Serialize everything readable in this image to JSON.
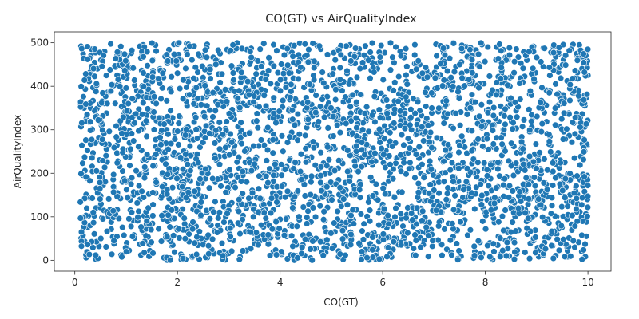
{
  "chart_data": {
    "type": "scatter",
    "title": "CO(GT) vs AirQualityIndex",
    "xlabel": "CO(GT)",
    "ylabel": "AirQualityIndex",
    "xlim": [
      -0.4,
      10.45
    ],
    "ylim": [
      -25,
      525
    ],
    "xticks": [
      0,
      2,
      4,
      6,
      8,
      10
    ],
    "yticks": [
      0,
      100,
      200,
      300,
      400,
      500
    ],
    "grid": false,
    "legend": "none",
    "marker_color": "#1f77b4",
    "marker_edge_color": "#ffffff",
    "point_count": 3000,
    "x_range": [
      0.1,
      10.0
    ],
    "y_range": [
      0,
      500
    ],
    "distribution": "approximately uniform over the x and y ranges",
    "points": [
      [
        0.12,
        492
      ],
      [
        0.15,
        65
      ],
      [
        0.18,
        350
      ],
      [
        0.22,
        6
      ],
      [
        0.25,
        188
      ],
      [
        0.31,
        271
      ],
      [
        0.35,
        445
      ],
      [
        0.41,
        120
      ],
      [
        0.47,
        32
      ],
      [
        0.52,
        310
      ],
      [
        0.58,
        480
      ],
      [
        0.63,
        226
      ],
      [
        0.71,
        88
      ],
      [
        0.76,
        402
      ],
      [
        0.83,
        155
      ],
      [
        0.9,
        12
      ],
      [
        0.96,
        335
      ],
      [
        1.02,
        470
      ],
      [
        1.08,
        240
      ],
      [
        1.15,
        58
      ],
      [
        1.21,
        390
      ],
      [
        1.27,
        140
      ],
      [
        1.33,
        495
      ],
      [
        1.4,
        285
      ],
      [
        1.46,
        22
      ],
      [
        1.53,
        365
      ],
      [
        1.59,
        175
      ],
      [
        1.66,
        440
      ],
      [
        1.72,
        95
      ],
      [
        1.79,
        300
      ],
      [
        1.85,
        5
      ],
      [
        1.92,
        455
      ],
      [
        1.98,
        210
      ],
      [
        2.05,
        330
      ],
      [
        2.11,
        70
      ],
      [
        2.18,
        498
      ],
      [
        2.24,
        160
      ],
      [
        2.31,
        380
      ],
      [
        2.37,
        40
      ],
      [
        2.44,
        260
      ],
      [
        2.5,
        420
      ],
      [
        2.57,
        110
      ],
      [
        2.63,
        345
      ],
      [
        2.7,
        15
      ],
      [
        2.76,
        230
      ],
      [
        2.83,
        475
      ],
      [
        2.89,
        135
      ],
      [
        2.96,
        295
      ],
      [
        3.02,
        60
      ],
      [
        3.09,
        410
      ],
      [
        3.15,
        195
      ],
      [
        3.22,
        8
      ],
      [
        3.28,
        360
      ],
      [
        3.35,
        250
      ],
      [
        3.41,
        485
      ],
      [
        3.48,
        100
      ],
      [
        3.54,
        320
      ],
      [
        3.61,
        45
      ],
      [
        3.67,
        430
      ],
      [
        3.74,
        170
      ],
      [
        3.8,
        275
      ],
      [
        3.87,
        20
      ],
      [
        3.93,
        395
      ],
      [
        4.0,
        145
      ],
      [
        4.06,
        490
      ],
      [
        4.13,
        215
      ],
      [
        4.19,
        80
      ],
      [
        4.26,
        350
      ],
      [
        4.32,
        10
      ],
      [
        4.39,
        460
      ],
      [
        4.45,
        185
      ],
      [
        4.52,
        305
      ],
      [
        4.58,
        55
      ],
      [
        4.65,
        425
      ],
      [
        4.71,
        265
      ],
      [
        4.78,
        125
      ],
      [
        4.84,
        375
      ],
      [
        4.91,
        30
      ],
      [
        4.97,
        200
      ],
      [
        5.04,
        440
      ],
      [
        5.1,
        90
      ],
      [
        5.17,
        315
      ],
      [
        5.23,
        2
      ],
      [
        5.3,
        255
      ],
      [
        5.36,
        495
      ],
      [
        5.43,
        150
      ],
      [
        5.49,
        385
      ],
      [
        5.56,
        35
      ],
      [
        5.62,
        220
      ],
      [
        5.69,
        465
      ],
      [
        5.75,
        115
      ],
      [
        5.82,
        340
      ],
      [
        5.88,
        18
      ],
      [
        5.95,
        280
      ],
      [
        6.01,
        415
      ],
      [
        6.08,
        75
      ],
      [
        6.14,
        190
      ],
      [
        6.21,
        355
      ],
      [
        6.27,
        50
      ],
      [
        6.34,
        480
      ],
      [
        6.4,
        235
      ],
      [
        6.47,
        105
      ],
      [
        6.53,
        325
      ],
      [
        6.6,
        12
      ],
      [
        6.66,
        450
      ],
      [
        6.73,
        165
      ],
      [
        6.79,
        290
      ],
      [
        6.86,
        395
      ],
      [
        6.92,
        65
      ],
      [
        6.99,
        205
      ],
      [
        7.05,
        470
      ],
      [
        7.12,
        130
      ],
      [
        7.18,
        365
      ],
      [
        7.25,
        25
      ],
      [
        7.31,
        245
      ],
      [
        7.38,
        500
      ],
      [
        7.44,
        180
      ],
      [
        7.51,
        310
      ],
      [
        7.57,
        85
      ],
      [
        7.64,
        435
      ],
      [
        7.7,
        155
      ],
      [
        7.77,
        5
      ],
      [
        7.83,
        270
      ],
      [
        7.9,
        405
      ],
      [
        7.96,
        120
      ],
      [
        8.03,
        345
      ],
      [
        8.09,
        40
      ],
      [
        8.16,
        225
      ],
      [
        8.22,
        490
      ],
      [
        8.29,
        140
      ],
      [
        8.35,
        300
      ],
      [
        8.42,
        70
      ],
      [
        8.48,
        420
      ],
      [
        8.55,
        195
      ],
      [
        8.61,
        15
      ],
      [
        8.68,
        370
      ],
      [
        8.74,
        250
      ],
      [
        8.81,
        460
      ],
      [
        8.87,
        95
      ],
      [
        8.94,
        330
      ],
      [
        9.0,
        28
      ],
      [
        9.07,
        210
      ],
      [
        9.13,
        445
      ],
      [
        9.2,
        160
      ],
      [
        9.26,
        285
      ],
      [
        9.33,
        490
      ],
      [
        9.39,
        60
      ],
      [
        9.46,
        230
      ],
      [
        9.52,
        380
      ],
      [
        9.59,
        135
      ],
      [
        9.65,
        10
      ],
      [
        9.72,
        315
      ],
      [
        9.78,
        470
      ],
      [
        9.85,
        185
      ],
      [
        9.91,
        265
      ],
      [
        9.97,
        55
      ],
      [
        10.0,
        425
      ],
      [
        9.99,
        140
      ],
      [
        9.94,
        355
      ],
      [
        9.88,
        20
      ]
    ]
  }
}
